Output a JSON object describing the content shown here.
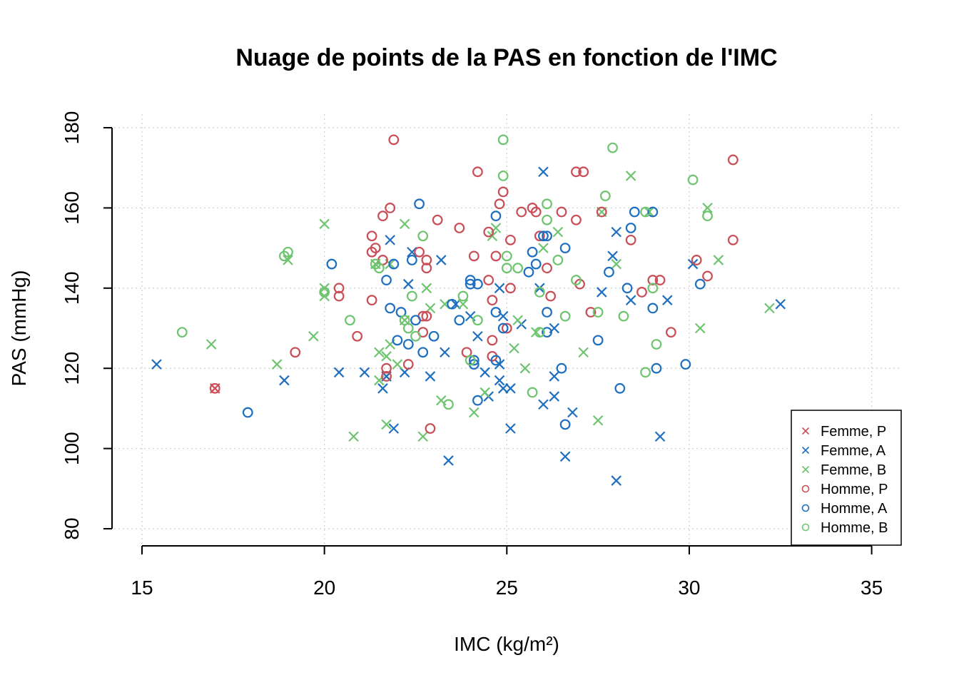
{
  "chart_data": {
    "type": "scatter",
    "title": "Nuage de points de la PAS en fonction de l'IMC",
    "xlabel": "IMC (kg/m²)",
    "ylabel": "PAS (mmHg)",
    "xlim": [
      15,
      35
    ],
    "ylim": [
      80,
      180
    ],
    "x_ticks": [
      "15",
      "20",
      "25",
      "30",
      "35"
    ],
    "y_ticks": [
      "80",
      "100",
      "120",
      "140",
      "160",
      "180"
    ],
    "grid": true,
    "legend_position": "bottom-right",
    "series": [
      {
        "name": "Femme, P",
        "marker": "cross",
        "color": "#c94e57",
        "points": [
          [
            17.0,
            115
          ],
          [
            21.7,
            118
          ]
        ]
      },
      {
        "name": "Femme, A",
        "marker": "cross",
        "color": "#1f6fc0",
        "points": [
          [
            15.4,
            121
          ],
          [
            18.9,
            117
          ],
          [
            20.4,
            119
          ],
          [
            21.1,
            119
          ],
          [
            21.6,
            115
          ],
          [
            21.7,
            118
          ],
          [
            21.8,
            152
          ],
          [
            21.9,
            105
          ],
          [
            22.2,
            119
          ],
          [
            22.3,
            141
          ],
          [
            22.4,
            149
          ],
          [
            22.9,
            118
          ],
          [
            23.2,
            147
          ],
          [
            23.3,
            124
          ],
          [
            23.4,
            97
          ],
          [
            23.6,
            136
          ],
          [
            24.0,
            133
          ],
          [
            24.2,
            128
          ],
          [
            24.4,
            119
          ],
          [
            24.5,
            113
          ],
          [
            24.8,
            117
          ],
          [
            24.8,
            121
          ],
          [
            24.8,
            140
          ],
          [
            24.9,
            133
          ],
          [
            24.9,
            115
          ],
          [
            25.1,
            115
          ],
          [
            25.1,
            105
          ],
          [
            25.4,
            131
          ],
          [
            25.9,
            140
          ],
          [
            26.0,
            169
          ],
          [
            26.0,
            111
          ],
          [
            26.3,
            130
          ],
          [
            26.3,
            118
          ],
          [
            26.3,
            113
          ],
          [
            26.6,
            98
          ],
          [
            26.8,
            109
          ],
          [
            27.6,
            139
          ],
          [
            27.9,
            148
          ],
          [
            28.0,
            154
          ],
          [
            28.0,
            92
          ],
          [
            28.4,
            137
          ],
          [
            29.2,
            103
          ],
          [
            29.4,
            137
          ],
          [
            30.1,
            146
          ],
          [
            32.5,
            136
          ]
        ]
      },
      {
        "name": "Femme, B",
        "marker": "cross",
        "color": "#6fc46f",
        "points": [
          [
            16.9,
            126
          ],
          [
            18.7,
            121
          ],
          [
            19.0,
            147
          ],
          [
            19.7,
            128
          ],
          [
            20.0,
            156
          ],
          [
            20.0,
            140
          ],
          [
            20.0,
            138
          ],
          [
            20.8,
            103
          ],
          [
            21.4,
            146
          ],
          [
            21.5,
            124
          ],
          [
            21.5,
            117
          ],
          [
            21.7,
            123
          ],
          [
            21.7,
            106
          ],
          [
            21.8,
            126
          ],
          [
            21.8,
            146
          ],
          [
            22.0,
            121
          ],
          [
            22.2,
            132
          ],
          [
            22.2,
            156
          ],
          [
            22.7,
            103
          ],
          [
            22.8,
            140
          ],
          [
            22.9,
            135
          ],
          [
            23.2,
            112
          ],
          [
            23.3,
            136
          ],
          [
            23.8,
            136
          ],
          [
            24.1,
            109
          ],
          [
            24.4,
            114
          ],
          [
            24.6,
            153
          ],
          [
            24.7,
            155
          ],
          [
            25.2,
            125
          ],
          [
            25.3,
            132
          ],
          [
            25.5,
            120
          ],
          [
            25.8,
            129
          ],
          [
            26.0,
            150
          ],
          [
            26.4,
            154
          ],
          [
            27.1,
            124
          ],
          [
            27.5,
            107
          ],
          [
            27.6,
            159
          ],
          [
            28.0,
            146
          ],
          [
            28.4,
            168
          ],
          [
            28.9,
            159
          ],
          [
            30.3,
            130
          ],
          [
            30.5,
            160
          ],
          [
            30.8,
            147
          ],
          [
            32.2,
            135
          ]
        ]
      },
      {
        "name": "Homme, P",
        "marker": "circle",
        "color": "#c94e57",
        "points": [
          [
            17.0,
            115
          ],
          [
            19.2,
            124
          ],
          [
            20.4,
            140
          ],
          [
            20.4,
            138
          ],
          [
            20.9,
            128
          ],
          [
            21.3,
            153
          ],
          [
            21.3,
            149
          ],
          [
            21.3,
            137
          ],
          [
            21.4,
            150
          ],
          [
            21.6,
            158
          ],
          [
            21.6,
            147
          ],
          [
            21.7,
            120
          ],
          [
            21.7,
            118
          ],
          [
            21.8,
            160
          ],
          [
            21.9,
            177
          ],
          [
            22.3,
            121
          ],
          [
            22.6,
            149
          ],
          [
            22.7,
            129
          ],
          [
            22.7,
            133
          ],
          [
            22.8,
            133
          ],
          [
            22.8,
            147
          ],
          [
            22.8,
            145
          ],
          [
            22.9,
            105
          ],
          [
            23.1,
            157
          ],
          [
            23.7,
            155
          ],
          [
            23.9,
            124
          ],
          [
            24.1,
            148
          ],
          [
            24.2,
            169
          ],
          [
            24.5,
            154
          ],
          [
            24.5,
            142
          ],
          [
            24.6,
            137
          ],
          [
            24.6,
            127
          ],
          [
            24.6,
            123
          ],
          [
            24.7,
            148
          ],
          [
            24.8,
            161
          ],
          [
            24.9,
            164
          ],
          [
            25.0,
            130
          ],
          [
            25.1,
            152
          ],
          [
            25.1,
            140
          ],
          [
            25.4,
            159
          ],
          [
            25.7,
            160
          ],
          [
            25.8,
            159
          ],
          [
            25.9,
            153
          ],
          [
            26.1,
            145
          ],
          [
            26.2,
            138
          ],
          [
            26.5,
            159
          ],
          [
            26.9,
            157
          ],
          [
            27.0,
            141
          ],
          [
            26.9,
            169
          ],
          [
            27.1,
            169
          ],
          [
            27.3,
            134
          ],
          [
            27.6,
            159
          ],
          [
            28.4,
            152
          ],
          [
            28.7,
            139
          ],
          [
            29.0,
            142
          ],
          [
            29.2,
            142
          ],
          [
            29.5,
            129
          ],
          [
            30.2,
            147
          ],
          [
            30.5,
            143
          ],
          [
            31.2,
            172
          ],
          [
            31.2,
            152
          ]
        ]
      },
      {
        "name": "Homme, A",
        "marker": "circle",
        "color": "#1f6fc0",
        "points": [
          [
            17.9,
            109
          ],
          [
            20.2,
            146
          ],
          [
            21.7,
            142
          ],
          [
            21.8,
            135
          ],
          [
            21.9,
            146
          ],
          [
            22.0,
            127
          ],
          [
            22.1,
            134
          ],
          [
            22.3,
            126
          ],
          [
            22.4,
            147
          ],
          [
            22.5,
            132
          ],
          [
            22.6,
            161
          ],
          [
            22.7,
            124
          ],
          [
            23.0,
            128
          ],
          [
            23.5,
            136
          ],
          [
            23.7,
            132
          ],
          [
            24.0,
            142
          ],
          [
            24.0,
            141
          ],
          [
            24.1,
            122
          ],
          [
            24.1,
            121
          ],
          [
            24.2,
            141
          ],
          [
            24.2,
            112
          ],
          [
            24.7,
            158
          ],
          [
            24.7,
            134
          ],
          [
            24.7,
            122
          ],
          [
            24.9,
            130
          ],
          [
            25.6,
            144
          ],
          [
            25.7,
            149
          ],
          [
            25.8,
            146
          ],
          [
            26.0,
            153
          ],
          [
            26.1,
            153
          ],
          [
            26.1,
            134
          ],
          [
            26.1,
            129
          ],
          [
            26.5,
            120
          ],
          [
            26.6,
            150
          ],
          [
            26.6,
            106
          ],
          [
            27.5,
            127
          ],
          [
            27.8,
            144
          ],
          [
            28.1,
            115
          ],
          [
            28.3,
            140
          ],
          [
            28.4,
            155
          ],
          [
            28.5,
            159
          ],
          [
            29.0,
            159
          ],
          [
            29.0,
            135
          ],
          [
            29.1,
            120
          ],
          [
            29.9,
            121
          ],
          [
            30.3,
            141
          ]
        ]
      },
      {
        "name": "Homme, B",
        "marker": "circle",
        "color": "#6fc46f",
        "points": [
          [
            16.1,
            129
          ],
          [
            18.9,
            148
          ],
          [
            19.0,
            149
          ],
          [
            20.0,
            139
          ],
          [
            20.7,
            132
          ],
          [
            21.4,
            146
          ],
          [
            21.5,
            145
          ],
          [
            22.2,
            132
          ],
          [
            22.3,
            130
          ],
          [
            22.4,
            138
          ],
          [
            22.5,
            128
          ],
          [
            22.7,
            153
          ],
          [
            23.4,
            111
          ],
          [
            23.8,
            138
          ],
          [
            24.0,
            122
          ],
          [
            24.2,
            132
          ],
          [
            24.9,
            177
          ],
          [
            24.9,
            168
          ],
          [
            25.0,
            148
          ],
          [
            25.0,
            145
          ],
          [
            25.3,
            145
          ],
          [
            25.7,
            114
          ],
          [
            25.9,
            129
          ],
          [
            25.9,
            139
          ],
          [
            26.1,
            161
          ],
          [
            26.1,
            157
          ],
          [
            26.4,
            147
          ],
          [
            26.6,
            133
          ],
          [
            26.9,
            142
          ],
          [
            27.5,
            134
          ],
          [
            27.7,
            163
          ],
          [
            27.9,
            175
          ],
          [
            28.2,
            133
          ],
          [
            28.8,
            119
          ],
          [
            28.8,
            159
          ],
          [
            29.1,
            126
          ],
          [
            29.0,
            140
          ],
          [
            30.1,
            167
          ],
          [
            30.5,
            158
          ]
        ]
      }
    ]
  }
}
